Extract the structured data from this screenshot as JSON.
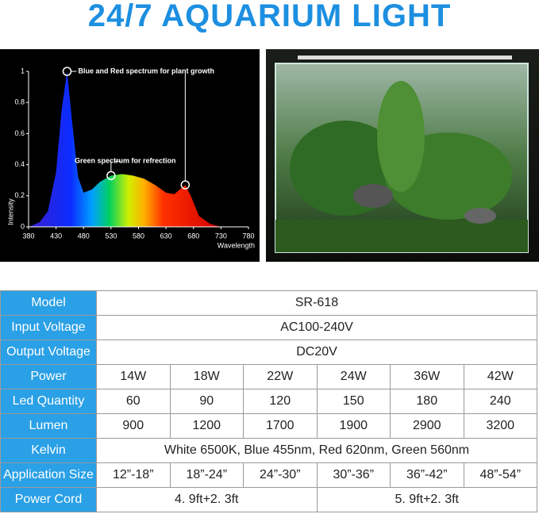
{
  "title": "24/7 AQUARIUM LIGHT",
  "chart_data": {
    "type": "area",
    "x": [
      380,
      400,
      415,
      430,
      440,
      450,
      460,
      470,
      480,
      495,
      510,
      530,
      550,
      570,
      590,
      610,
      630,
      645,
      655,
      665,
      675,
      690,
      710,
      730
    ],
    "values": [
      0,
      0.03,
      0.1,
      0.35,
      0.75,
      1,
      0.65,
      0.32,
      0.22,
      0.24,
      0.29,
      0.33,
      0.34,
      0.33,
      0.31,
      0.27,
      0.22,
      0.21,
      0.24,
      0.27,
      0.2,
      0.07,
      0.02,
      0
    ],
    "xlim": [
      380,
      780
    ],
    "ylim": [
      0,
      1
    ],
    "xticks": [
      380,
      430,
      480,
      530,
      580,
      630,
      680,
      730,
      780
    ],
    "yticks": [
      0,
      0.2,
      0.4,
      0.6,
      0.8,
      1
    ],
    "xlabel": "Wavelength",
    "ylabel": "Intensity",
    "annotations": [
      {
        "text": "Blue and Red spectrum for plant growth",
        "x": 450,
        "y": 1
      },
      {
        "text": "Green spectrum for refrection",
        "x": 530,
        "y": 0.33
      },
      {
        "text": "",
        "x": 665,
        "y": 0.27
      }
    ]
  },
  "table": {
    "rows": [
      {
        "label": "Model",
        "cells": [
          "SR-618"
        ]
      },
      {
        "label": "Input Voltage",
        "cells": [
          "AC100-240V"
        ]
      },
      {
        "label": "Output Voltage",
        "cells": [
          "DC20V"
        ]
      },
      {
        "label": "Power",
        "cells": [
          "14W",
          "18W",
          "22W",
          "24W",
          "36W",
          "42W"
        ]
      },
      {
        "label": "Led Quantity",
        "cells": [
          "60",
          "90",
          "120",
          "150",
          "180",
          "240"
        ]
      },
      {
        "label": "Lumen",
        "cells": [
          "900",
          "1200",
          "1700",
          "1900",
          "2900",
          "3200"
        ]
      },
      {
        "label": "Kelvin",
        "cells": [
          "White 6500K,  Blue 455nm,  Red 620nm,  Green 560nm"
        ]
      },
      {
        "label": "Application Size",
        "cells": [
          "12”-18”",
          "18”-24”",
          "24”-30”",
          "30”-36”",
          "36”-42”",
          "48”-54”"
        ]
      },
      {
        "label": "Power Cord",
        "cells": [
          "4. 9ft+2. 3ft",
          "5. 9ft+2. 3ft"
        ]
      }
    ]
  }
}
